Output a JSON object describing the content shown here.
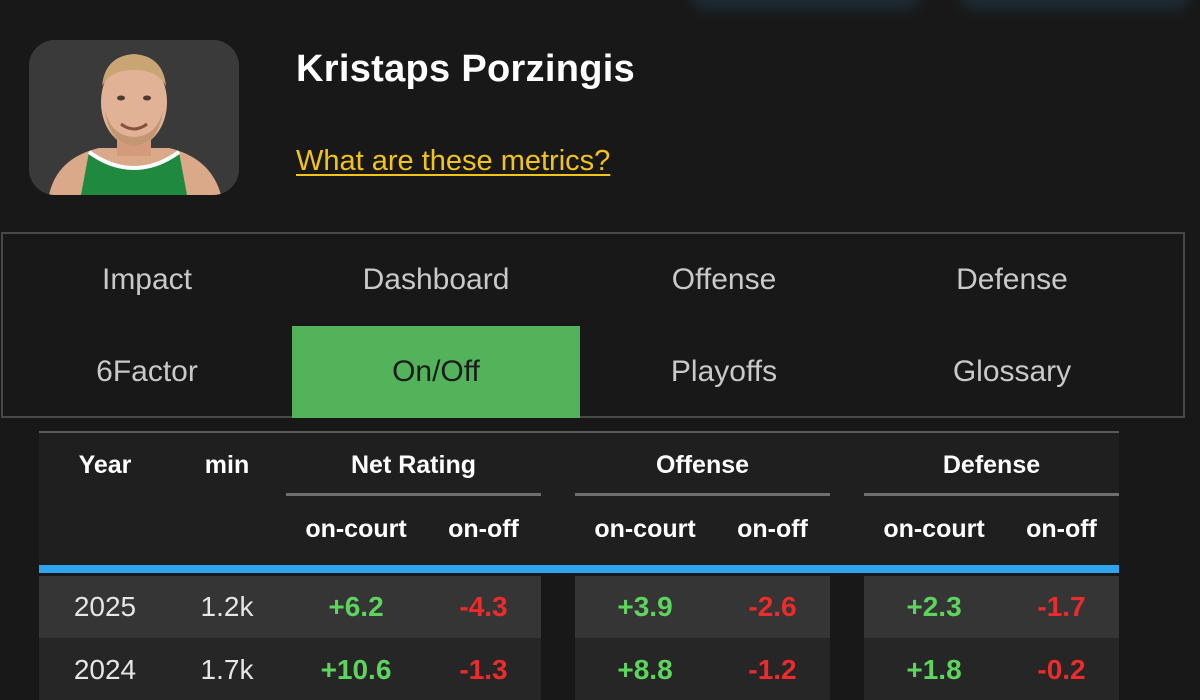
{
  "player": {
    "name": "Kristaps Porzingis",
    "metrics_link": "What are these metrics?"
  },
  "tabs": [
    {
      "label": "Impact",
      "active": false
    },
    {
      "label": "Dashboard",
      "active": false
    },
    {
      "label": "Offense",
      "active": false
    },
    {
      "label": "Defense",
      "active": false
    },
    {
      "label": "6Factor",
      "active": false
    },
    {
      "label": "On/Off",
      "active": true
    },
    {
      "label": "Playoffs",
      "active": false
    },
    {
      "label": "Glossary",
      "active": false
    }
  ],
  "colors": {
    "active_tab": "#52b35a",
    "link": "#f2c418",
    "positive": "#5cd45e",
    "negative": "#ee2b2b",
    "accent_bar": "#2fa4ef"
  },
  "table": {
    "headers": {
      "year": "Year",
      "min": "min",
      "net": "Net Rating",
      "offense": "Offense",
      "defense": "Defense"
    },
    "sub": {
      "on_court": "on-court",
      "on_off": "on-off"
    },
    "rows": [
      {
        "year": "2025",
        "min": "1.2k",
        "net_on": "+6.2",
        "net_onoff": "-4.3",
        "off_on": "+3.9",
        "off_onoff": "-2.6",
        "def_on": "+2.3",
        "def_onoff": "-1.7"
      },
      {
        "year": "2024",
        "min": "1.7k",
        "net_on": "+10.6",
        "net_onoff": "-1.3",
        "off_on": "+8.8",
        "off_onoff": "-1.2",
        "def_on": "+1.8",
        "def_onoff": "-0.2"
      }
    ]
  }
}
